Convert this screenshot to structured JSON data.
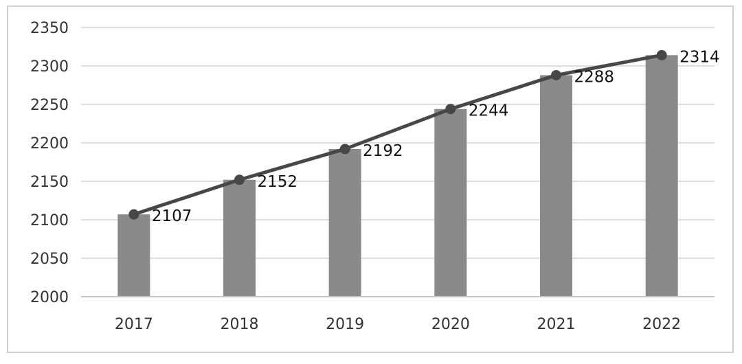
{
  "chart_data": {
    "type": "bar",
    "title": "",
    "xlabel": "",
    "ylabel": "",
    "categories": [
      "2017",
      "2018",
      "2019",
      "2020",
      "2021",
      "2022"
    ],
    "y_ticks": [
      "2000",
      "2050",
      "2100",
      "2150",
      "2200",
      "2250",
      "2300",
      "2350"
    ],
    "ylim": [
      2000,
      2350
    ],
    "grid": true,
    "legend": "none",
    "series": [
      {
        "type": "bar",
        "values": [
          2107,
          2152,
          2192,
          2244,
          2288,
          2314
        ],
        "color": "#8a8a8a"
      },
      {
        "type": "line",
        "values": [
          2107,
          2152,
          2192,
          2244,
          2288,
          2314
        ],
        "data_labels": [
          "2107",
          "2152",
          "2192",
          "2244",
          "2288",
          "2314"
        ],
        "color": "#474747"
      }
    ]
  }
}
